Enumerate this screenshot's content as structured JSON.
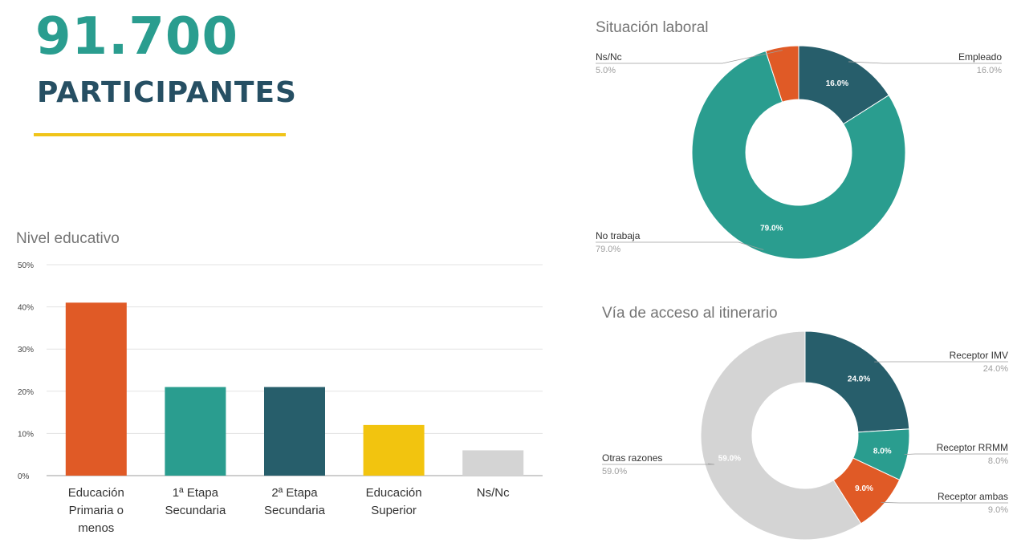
{
  "header": {
    "participants_number": "91.700",
    "participants_label": "PARTICIPANTES"
  },
  "colors": {
    "teal": "#2a9d8f",
    "dark_teal": "#275e6b",
    "orange": "#e05a26",
    "yellow": "#f2c40f",
    "gray": "#d4d4d4",
    "accent_rule": "#f0c419"
  },
  "chart_data": [
    {
      "type": "bar",
      "title": "Nivel educativo",
      "categories": [
        [
          "Educación",
          "Primaria o",
          "menos"
        ],
        [
          "1ª Etapa",
          "Secundaria"
        ],
        [
          "2ª Etapa",
          "Secundaria"
        ],
        [
          "Educación",
          "Superior"
        ],
        [
          "Ns/Nc"
        ]
      ],
      "values": [
        41,
        21,
        21,
        12,
        6
      ],
      "bar_colors": [
        "#e05a26",
        "#2a9d8f",
        "#275e6b",
        "#f2c40f",
        "#d4d4d4"
      ],
      "yticks": [
        "0%",
        "10%",
        "20%",
        "30%",
        "40%",
        "50%"
      ],
      "ylim": [
        0,
        50
      ],
      "grid": true
    },
    {
      "type": "pie",
      "donut": true,
      "title": "Situación laboral",
      "slices": [
        {
          "label": "Empleado",
          "value": 16.0,
          "pct_label": "16.0%",
          "inner_label": "16.0%",
          "color": "#275e6b"
        },
        {
          "label": "No trabaja",
          "value": 79.0,
          "pct_label": "79.0%",
          "inner_label": "79.0%",
          "color": "#2a9d8f"
        },
        {
          "label": "Ns/Nc",
          "value": 5.0,
          "pct_label": "5.0%",
          "inner_label": "",
          "color": "#e05a26"
        }
      ]
    },
    {
      "type": "pie",
      "donut": true,
      "title": "Vía de acceso al itinerario",
      "slices": [
        {
          "label": "Receptor IMV",
          "value": 24.0,
          "pct_label": "24.0%",
          "inner_label": "24.0%",
          "color": "#275e6b"
        },
        {
          "label": "Receptor RRMM",
          "value": 8.0,
          "pct_label": "8.0%",
          "inner_label": "8.0%",
          "color": "#2a9d8f"
        },
        {
          "label": "Receptor ambas",
          "value": 9.0,
          "pct_label": "9.0%",
          "inner_label": "9.0%",
          "color": "#e05a26"
        },
        {
          "label": "Otras razones",
          "value": 59.0,
          "pct_label": "59.0%",
          "inner_label": "59.0%",
          "color": "#d4d4d4"
        }
      ]
    }
  ]
}
